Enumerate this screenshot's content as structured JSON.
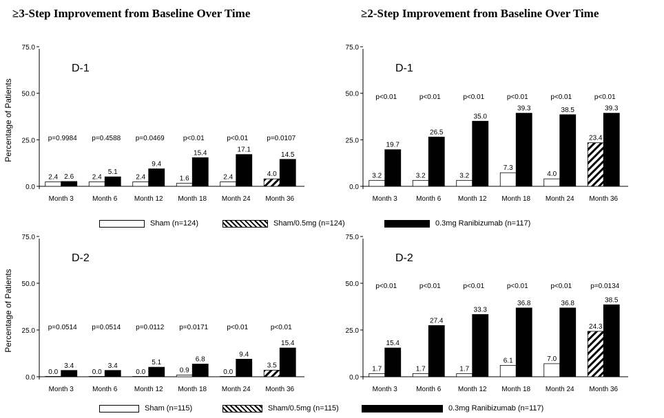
{
  "titles": {
    "left": "≥3-Step Improvement from Baseline Over Time",
    "right": "≥2-Step Improvement from Baseline Over Time"
  },
  "legends": [
    {
      "items": [
        "Sham (n=124)",
        "Sham/0.5mg (n=124)",
        "0.3mg Ranibizumab (n=117)"
      ]
    },
    {
      "items": [
        "Sham (n=115)",
        "Sham/0.5mg (n=115)",
        "0.3mg Ranibizumab (n=117)"
      ]
    }
  ],
  "colors": {
    "open": "#ffffff",
    "solid": "#000000",
    "stroke": "#000000"
  },
  "chart_data": [
    {
      "type": "bar",
      "panel_label": "D-1",
      "ylabel": "Percentage of Patients",
      "ylim": [
        0,
        75
      ],
      "yticks": [
        "0.0",
        "25.0",
        "50.0",
        "75.0"
      ],
      "categories": [
        "Month 3",
        "Month 6",
        "Month 12",
        "Month 18",
        "Month 24",
        "Month 36"
      ],
      "series": [
        {
          "name": "Sham (n=124)",
          "values": [
            2.4,
            2.4,
            2.4,
            1.6,
            2.4,
            null
          ],
          "labels": [
            "2.4",
            "2.4",
            "2.4",
            "1.6",
            "2.4",
            ""
          ]
        },
        {
          "name": "Sham/0.5mg (n=124)",
          "values": [
            null,
            null,
            null,
            null,
            null,
            4.0
          ],
          "labels": [
            "",
            "",
            "",
            "",
            "",
            "4.0"
          ]
        },
        {
          "name": "0.3mg Ranibizumab (n=117)",
          "values": [
            2.6,
            5.1,
            9.4,
            15.4,
            17.1,
            14.5
          ],
          "labels": [
            "2.6",
            "5.1",
            "9.4",
            "15.4",
            "17.1",
            "14.5"
          ]
        }
      ],
      "pvalues": [
        "p=0.9984",
        "p=0.4588",
        "p=0.0469",
        "p<0.01",
        "p<0.01",
        "p=0.0107"
      ]
    },
    {
      "type": "bar",
      "panel_label": "D-1",
      "ylabel": "",
      "ylim": [
        0,
        75
      ],
      "yticks": [
        "0.0",
        "25.0",
        "50.0",
        "75.0"
      ],
      "categories": [
        "Month 3",
        "Month 6",
        "Month 12",
        "Month 18",
        "Month 24",
        "Month 36"
      ],
      "series": [
        {
          "name": "Sham (n=124)",
          "values": [
            3.2,
            3.2,
            3.2,
            7.3,
            4.0,
            null
          ],
          "labels": [
            "3.2",
            "3.2",
            "3.2",
            "7.3",
            "4.0",
            ""
          ]
        },
        {
          "name": "Sham/0.5mg (n=124)",
          "values": [
            null,
            null,
            null,
            null,
            null,
            23.4
          ],
          "labels": [
            "",
            "",
            "",
            "",
            "",
            "23.4"
          ]
        },
        {
          "name": "0.3mg Ranibizumab (n=117)",
          "values": [
            19.7,
            26.5,
            35.0,
            39.3,
            38.5,
            39.3
          ],
          "labels": [
            "19.7",
            "26.5",
            "35.0",
            "39.3",
            "38.5",
            "39.3"
          ]
        }
      ],
      "pvalues": [
        "p<0.01",
        "p<0.01",
        "p<0.01",
        "p<0.01",
        "p<0.01",
        "p<0.01"
      ]
    },
    {
      "type": "bar",
      "panel_label": "D-2",
      "ylabel": "Percentage of Patients",
      "ylim": [
        0,
        75
      ],
      "yticks": [
        "0.0",
        "25.0",
        "50.0",
        "75.0"
      ],
      "categories": [
        "Month 3",
        "Month 6",
        "Month 12",
        "Month 18",
        "Month 24",
        "Month 36"
      ],
      "series": [
        {
          "name": "Sham (n=115)",
          "values": [
            0.0,
            0.0,
            0.0,
            0.9,
            0.0,
            null
          ],
          "labels": [
            "0.0",
            "0.0",
            "0.0",
            "0.9",
            "0.0",
            ""
          ]
        },
        {
          "name": "Sham/0.5mg (n=115)",
          "values": [
            null,
            null,
            null,
            null,
            null,
            3.5
          ],
          "labels": [
            "",
            "",
            "",
            "",
            "",
            "3.5"
          ]
        },
        {
          "name": "0.3mg Ranibizumab (n=117)",
          "values": [
            3.4,
            3.4,
            5.1,
            6.8,
            9.4,
            15.4
          ],
          "labels": [
            "3.4",
            "3.4",
            "5.1",
            "6.8",
            "9.4",
            "15.4"
          ]
        }
      ],
      "pvalues": [
        "p=0.0514",
        "p=0.0514",
        "p=0.0112",
        "p=0.0171",
        "p<0.01",
        "p<0.01"
      ]
    },
    {
      "type": "bar",
      "panel_label": "D-2",
      "ylabel": "",
      "ylim": [
        0,
        75
      ],
      "yticks": [
        "0.0",
        "25.0",
        "50.0",
        "75.0"
      ],
      "categories": [
        "Month 3",
        "Month 6",
        "Month 12",
        "Month 18",
        "Month 24",
        "Month 36"
      ],
      "series": [
        {
          "name": "Sham (n=115)",
          "values": [
            1.7,
            1.7,
            1.7,
            6.1,
            7.0,
            null
          ],
          "labels": [
            "1.7",
            "1.7",
            "1.7",
            "6.1",
            "7.0",
            ""
          ]
        },
        {
          "name": "Sham/0.5mg (n=115)",
          "values": [
            null,
            null,
            null,
            null,
            null,
            24.3
          ],
          "labels": [
            "",
            "",
            "",
            "",
            "",
            "24.3"
          ]
        },
        {
          "name": "0.3mg Ranibizumab (n=117)",
          "values": [
            15.4,
            27.4,
            33.3,
            36.8,
            36.8,
            38.5
          ],
          "labels": [
            "15.4",
            "27.4",
            "33.3",
            "36.8",
            "36.8",
            "38.5"
          ]
        }
      ],
      "pvalues": [
        "p<0.01",
        "p<0.01",
        "p<0.01",
        "p<0.01",
        "p<0.01",
        "p=0.0134"
      ]
    }
  ]
}
